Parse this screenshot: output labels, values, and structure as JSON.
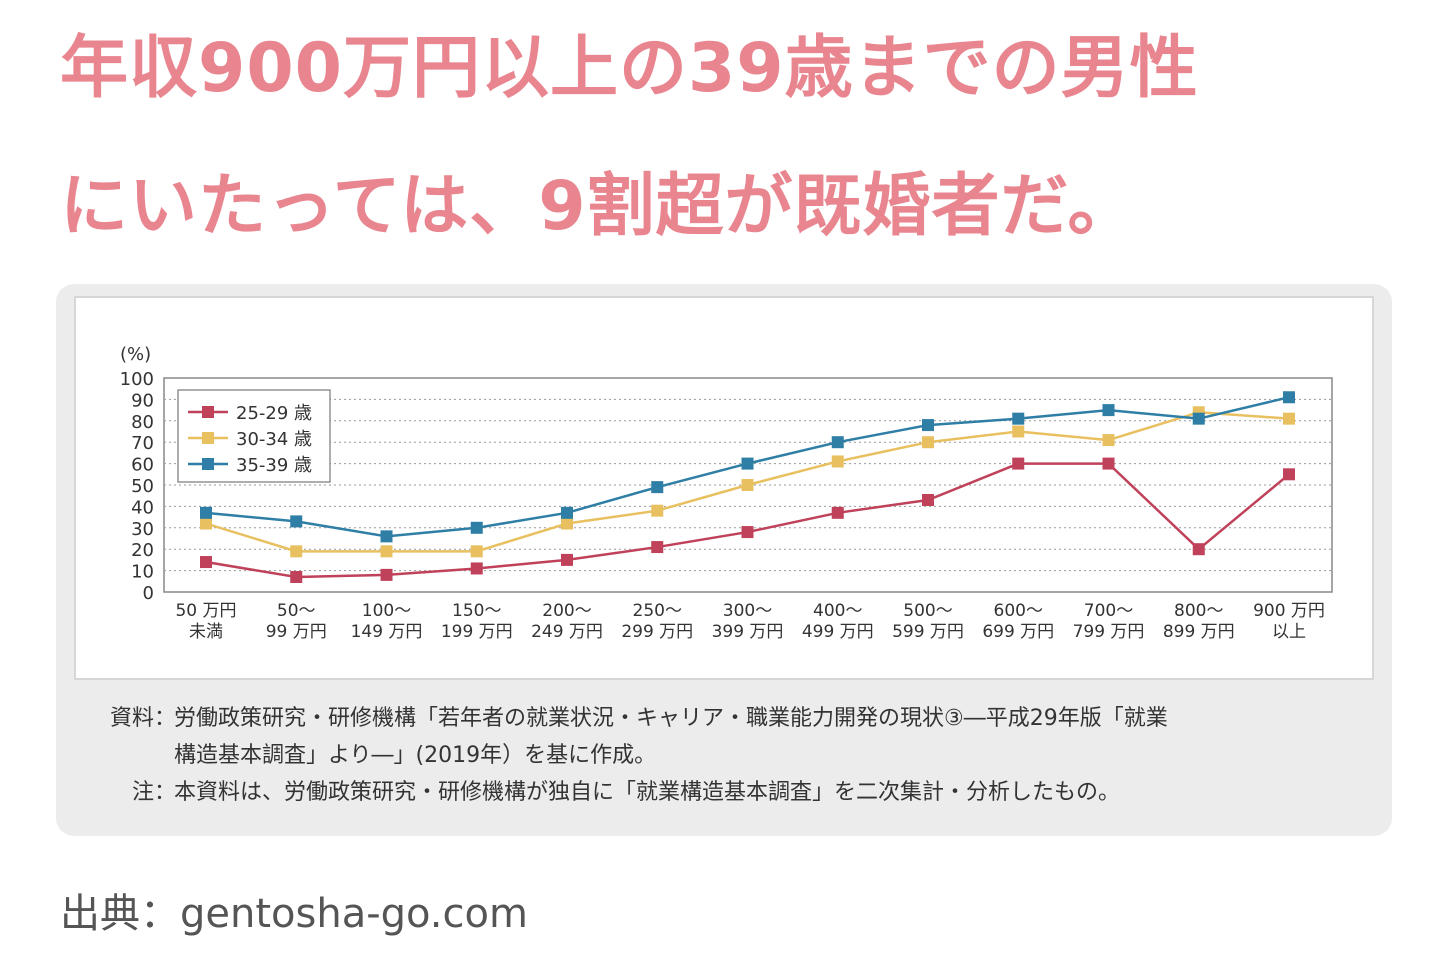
{
  "headline": {
    "line1": "年収900万円以上の39歳までの男性",
    "line2": "にいたっては、9割超が既婚者だ。"
  },
  "chart_data": {
    "type": "line",
    "ylabel": "(%)",
    "ylim": [
      0,
      100
    ],
    "yticks": [
      0,
      10,
      20,
      30,
      40,
      50,
      60,
      70,
      80,
      90,
      100
    ],
    "grid": true,
    "legend_position": "top-left",
    "categories": [
      [
        "50 万円",
        "未満"
      ],
      [
        "50～",
        "99 万円"
      ],
      [
        "100～",
        "149 万円"
      ],
      [
        "150～",
        "199 万円"
      ],
      [
        "200～",
        "249 万円"
      ],
      [
        "250～",
        "299 万円"
      ],
      [
        "300～",
        "399 万円"
      ],
      [
        "400～",
        "499 万円"
      ],
      [
        "500～",
        "599 万円"
      ],
      [
        "600～",
        "699 万円"
      ],
      [
        "700～",
        "799 万円"
      ],
      [
        "800～",
        "899 万円"
      ],
      [
        "900 万円",
        "以上"
      ]
    ],
    "series": [
      {
        "name": "25-29 歳",
        "color": "#c0415a",
        "values": [
          14,
          7,
          8,
          11,
          15,
          21,
          28,
          37,
          43,
          60,
          60,
          20,
          55
        ]
      },
      {
        "name": "30-34 歳",
        "color": "#e8c060",
        "values": [
          32,
          19,
          19,
          19,
          32,
          38,
          50,
          61,
          70,
          75,
          71,
          84,
          81
        ]
      },
      {
        "name": "35-39 歳",
        "color": "#2e7ea6",
        "values": [
          37,
          33,
          26,
          30,
          37,
          49,
          60,
          70,
          78,
          81,
          85,
          81,
          91
        ]
      }
    ]
  },
  "notes": [
    {
      "label": "資料",
      "sep": "：",
      "lines": [
        "労働政策研究・研修機構「若年者の就業状況・キャリア・職業能力開発の現状③―平成29年版「就業",
        "構造基本調査」より―」(2019年）を基に作成。"
      ]
    },
    {
      "label": "注",
      "sep": "：",
      "lines": [
        "本資料は、労働政策研究・研修機構が独自に「就業構造基本調査」を二次集計・分析したもの。"
      ]
    }
  ],
  "source": "出典：gentosha-go.com"
}
